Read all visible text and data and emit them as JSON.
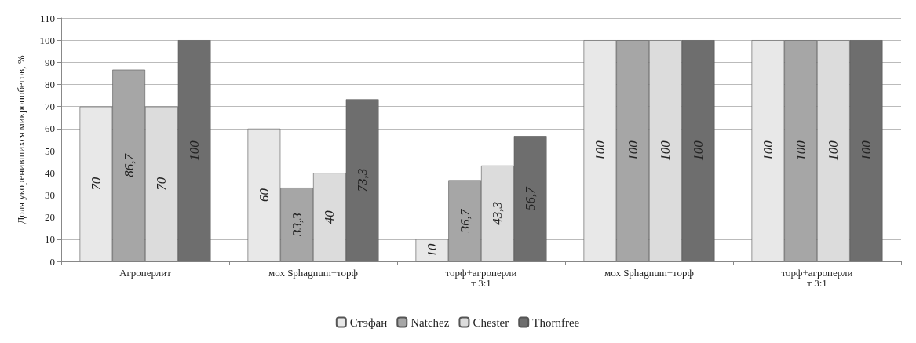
{
  "chart_data": {
    "type": "bar",
    "ylabel": "Доля укоренившихся микропобегов, %",
    "categories": [
      "Агроперлит",
      "мох Sphagnum+торф",
      "торф+агроперлит 3:1",
      "мох Sphagnum+торф",
      "торф+агроперлит 3:1"
    ],
    "series": [
      {
        "name": "Стэфан",
        "color": "#e8e8e8",
        "values": [
          70,
          60,
          10,
          100,
          100
        ],
        "value_labels": [
          "70",
          "60",
          "10",
          "100",
          "100"
        ]
      },
      {
        "name": "Natchez",
        "color": "#a6a6a6",
        "values": [
          86.7,
          33.3,
          36.7,
          100,
          100
        ],
        "value_labels": [
          "86,7",
          "33,3",
          "36,7",
          "100",
          "100"
        ]
      },
      {
        "name": "Chester",
        "color": "#dcdcdc",
        "values": [
          70,
          40,
          43.3,
          100,
          100
        ],
        "value_labels": [
          "70",
          "40",
          "43,3",
          "100",
          "100"
        ]
      },
      {
        "name": "Thornfree",
        "color": "#6e6e6e",
        "values": [
          100,
          73.3,
          56.7,
          100,
          100
        ],
        "value_labels": [
          "100",
          "73,3",
          "56,7",
          "100",
          "100"
        ]
      }
    ],
    "ylim": [
      0,
      110
    ],
    "yticks": [
      0,
      10,
      20,
      30,
      40,
      50,
      60,
      70,
      80,
      90,
      100,
      110
    ],
    "grid": "y",
    "legend": "bottom"
  }
}
